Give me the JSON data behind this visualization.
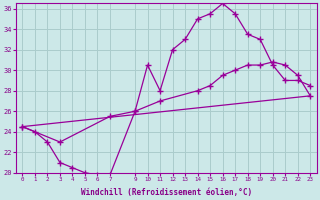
{
  "title": "",
  "xlabel": "Windchill (Refroidissement éolien,°C)",
  "ylabel": "",
  "bg_color": "#cce8e8",
  "line_color": "#990099",
  "grid_color": "#aacccc",
  "ylim": [
    20,
    36
  ],
  "xlim": [
    -0.5,
    23.5
  ],
  "yticks": [
    20,
    22,
    24,
    26,
    28,
    30,
    32,
    34,
    36
  ],
  "xticks": [
    0,
    1,
    2,
    3,
    4,
    5,
    6,
    7,
    9,
    10,
    11,
    12,
    13,
    14,
    15,
    16,
    17,
    18,
    19,
    20,
    21,
    22,
    23
  ],
  "line1_x": [
    0,
    1,
    2,
    3,
    4,
    5,
    6,
    7,
    9,
    10,
    11,
    12,
    13,
    14,
    15,
    16,
    17,
    18,
    19,
    20,
    21,
    22,
    23
  ],
  "line1_y": [
    24.5,
    24.0,
    23.0,
    21.0,
    20.5,
    20.0,
    19.8,
    19.8,
    26.0,
    30.5,
    28.0,
    32.0,
    33.0,
    35.0,
    35.5,
    36.5,
    35.5,
    33.5,
    33.0,
    30.5,
    29.0,
    29.0,
    28.5
  ],
  "line2_x": [
    0,
    3,
    7,
    9,
    11,
    14,
    15,
    16,
    17,
    18,
    19,
    20,
    21,
    22,
    23
  ],
  "line2_y": [
    24.5,
    23.0,
    25.5,
    26.0,
    27.0,
    28.0,
    28.5,
    29.5,
    30.0,
    30.5,
    30.5,
    30.8,
    30.5,
    29.5,
    27.5
  ],
  "line3_x": [
    0,
    23
  ],
  "line3_y": [
    24.5,
    27.5
  ]
}
